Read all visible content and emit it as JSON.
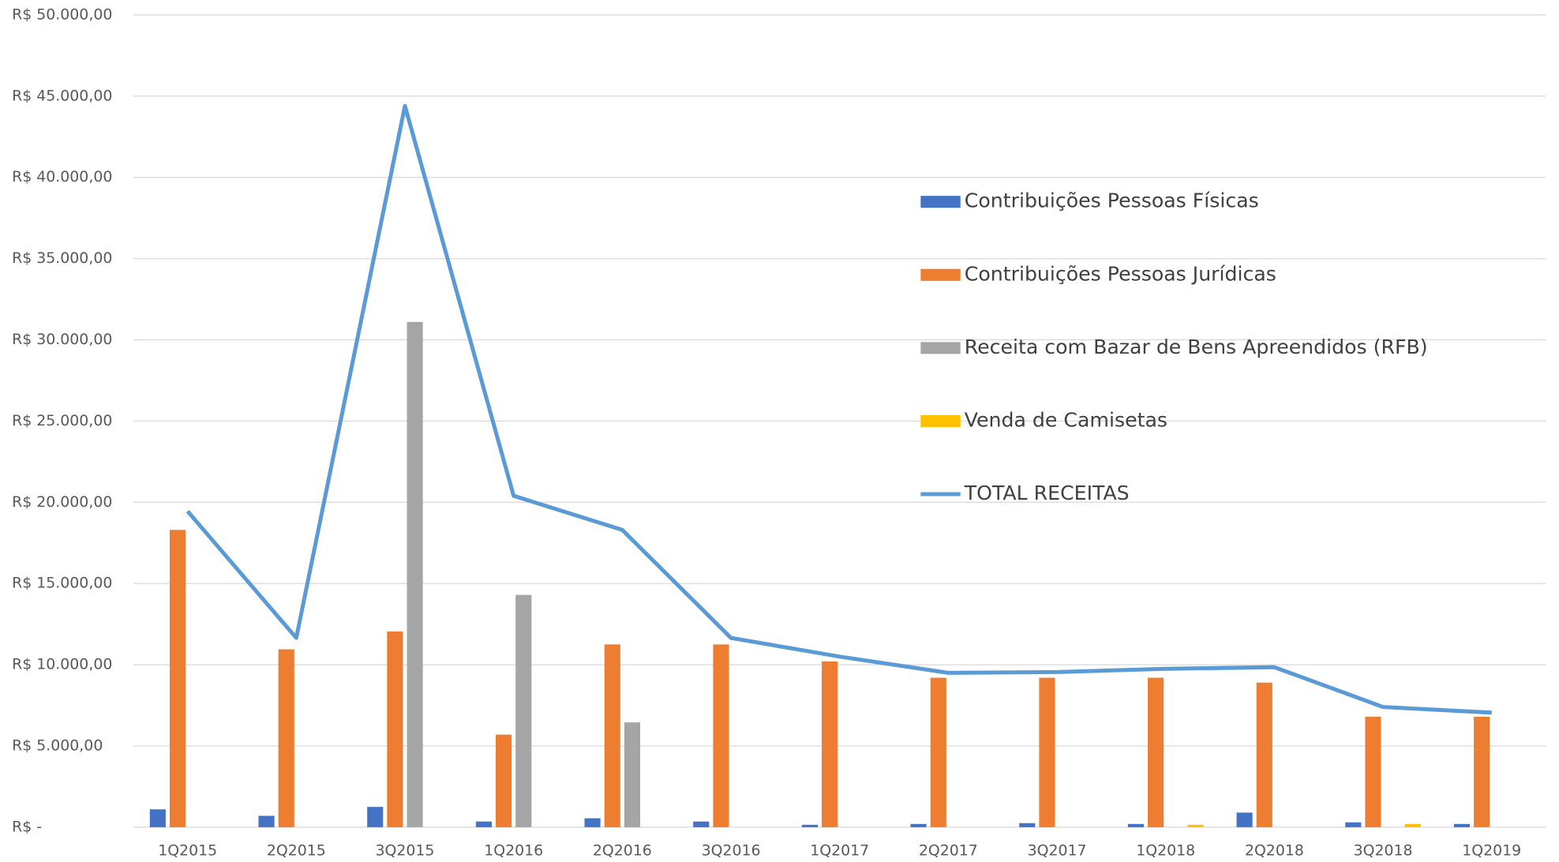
{
  "chart_data": {
    "type": "bar",
    "categories": [
      "1Q2015",
      "2Q2015",
      "3Q2015",
      "1Q2016",
      "2Q2016",
      "3Q2016",
      "1Q2017",
      "2Q2017",
      "3Q2017",
      "1Q2018",
      "2Q2018",
      "3Q2018",
      "1Q2019"
    ],
    "series": [
      {
        "name": "Contribuições Pessoas Físicas",
        "color": "#4472c4",
        "type": "bar",
        "values": [
          1100,
          700,
          1250,
          350,
          550,
          350,
          150,
          200,
          250,
          200,
          900,
          300,
          200
        ]
      },
      {
        "name": "Contribuições Pessoas Jurídicas",
        "color": "#ed7d31",
        "type": "bar",
        "values": [
          18300,
          10950,
          12050,
          5700,
          11250,
          11250,
          10200,
          9200,
          9200,
          9200,
          8900,
          6800,
          6800
        ]
      },
      {
        "name": "Receita com Bazar de Bens Apreendidos (RFB)",
        "color": "#a5a5a5",
        "type": "bar",
        "values": [
          0,
          0,
          31100,
          14300,
          6450,
          0,
          0,
          0,
          0,
          0,
          0,
          0,
          0
        ]
      },
      {
        "name": "Venda de Camisetas",
        "color": "#ffc000",
        "type": "bar",
        "values": [
          0,
          0,
          0,
          0,
          0,
          0,
          0,
          0,
          0,
          150,
          0,
          200,
          0
        ]
      },
      {
        "name": "TOTAL RECEITAS",
        "color": "#5b9bd5",
        "type": "line",
        "values": [
          19450,
          11650,
          44400,
          20400,
          18300,
          11650,
          10500,
          9500,
          9550,
          9750,
          9850,
          7400,
          7050
        ]
      }
    ],
    "ylim": [
      0,
      50000
    ],
    "yticks": [
      {
        "value": 0,
        "label": "R$ -"
      },
      {
        "value": 5000,
        "label": "R$ 5.000,00"
      },
      {
        "value": 10000,
        "label": "R$ 10.000,00"
      },
      {
        "value": 15000,
        "label": "R$ 15.000,00"
      },
      {
        "value": 20000,
        "label": "R$ 20.000,00"
      },
      {
        "value": 25000,
        "label": "R$ 25.000,00"
      },
      {
        "value": 30000,
        "label": "R$ 30.000,00"
      },
      {
        "value": 35000,
        "label": "R$ 35.000,00"
      },
      {
        "value": 40000,
        "label": "R$ 40.000,00"
      },
      {
        "value": 45000,
        "label": "R$ 45.000,00"
      },
      {
        "value": 50000,
        "label": "R$ 50.000,00"
      }
    ],
    "grid": true,
    "legend": "right"
  }
}
